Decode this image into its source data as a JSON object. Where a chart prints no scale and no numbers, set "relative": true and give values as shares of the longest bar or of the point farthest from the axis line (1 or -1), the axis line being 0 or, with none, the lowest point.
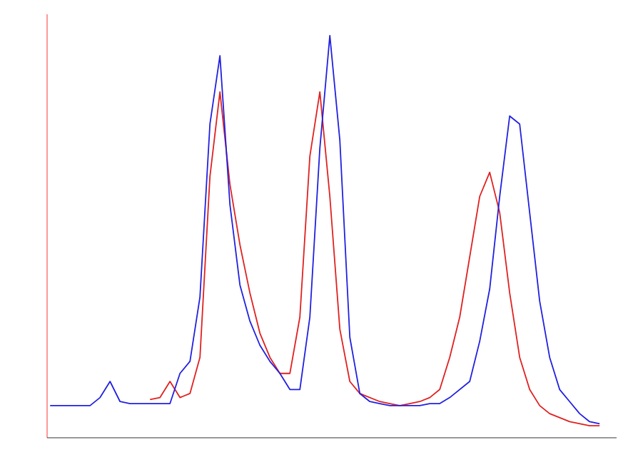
{
  "chart_data": {
    "type": "line",
    "relative": true,
    "marker": "none",
    "line_style": "solid",
    "categories": [
      null,
      null,
      null,
      null,
      null,
      null,
      null,
      null,
      null,
      null,
      null,
      null,
      null,
      null,
      null,
      null,
      null,
      null,
      null,
      null,
      null,
      null,
      null,
      null,
      null,
      null,
      null,
      null,
      null,
      null,
      null,
      null,
      null,
      null,
      null,
      null,
      null,
      null,
      null,
      null,
      null,
      null,
      null,
      null,
      null,
      null,
      null,
      null,
      null,
      null,
      null,
      null,
      null,
      null,
      null,
      null
    ],
    "series": [
      {
        "color": "#2020e0",
        "values": [
          0.08,
          0.08,
          0.08,
          0.08,
          0.08,
          0.1,
          0.14,
          0.09,
          0.085,
          0.085,
          0.085,
          0.085,
          0.085,
          0.16,
          0.19,
          0.35,
          0.78,
          0.95,
          0.58,
          0.38,
          0.29,
          0.23,
          0.19,
          0.16,
          0.12,
          0.12,
          0.3,
          0.72,
          1.0,
          0.74,
          0.25,
          0.11,
          0.09,
          0.085,
          0.08,
          0.08,
          0.08,
          0.08,
          0.085,
          0.085,
          0.1,
          0.12,
          0.14,
          0.24,
          0.37,
          0.6,
          0.8,
          0.78,
          0.56,
          0.34,
          0.2,
          0.12,
          0.09,
          0.06,
          0.04,
          0.035
        ]
      },
      {
        "color": "#e02020",
        "values": [
          null,
          null,
          null,
          null,
          null,
          null,
          null,
          null,
          null,
          null,
          0.095,
          0.1,
          0.14,
          0.1,
          0.11,
          0.2,
          0.65,
          0.86,
          0.63,
          0.48,
          0.36,
          0.26,
          0.2,
          0.16,
          0.16,
          0.3,
          0.7,
          0.86,
          0.6,
          0.27,
          0.14,
          0.11,
          0.1,
          0.09,
          0.085,
          0.08,
          0.085,
          0.09,
          0.1,
          0.12,
          0.2,
          0.3,
          0.45,
          0.6,
          0.66,
          0.56,
          0.36,
          0.2,
          0.12,
          0.08,
          0.06,
          0.05,
          0.04,
          0.035,
          0.03,
          0.03
        ]
      }
    ]
  }
}
